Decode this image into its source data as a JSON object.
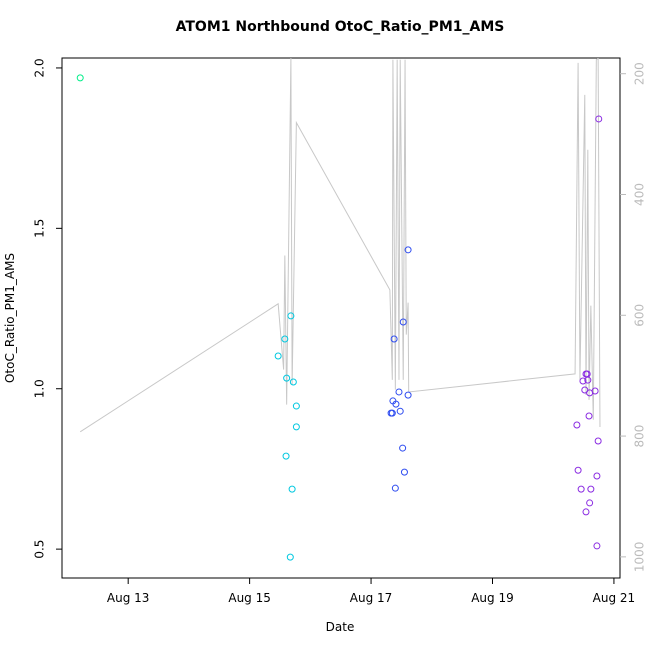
{
  "chart_data": {
    "type": "scatter",
    "title": "ATOM1 Northbound OtoC_Ratio_PM1_AMS",
    "x_label": "Date",
    "y_label": "OtoC_Ratio_PM1_AMS",
    "xlim": [
      11.91,
      21.1
    ],
    "xticks": [
      {
        "value": 13,
        "label": "Aug 13"
      },
      {
        "value": 15,
        "label": "Aug 15"
      },
      {
        "value": 17,
        "label": "Aug 17"
      },
      {
        "value": 19,
        "label": "Aug 19"
      },
      {
        "value": 21,
        "label": "Aug 21"
      }
    ],
    "ylim": [
      0.41,
      2.031
    ],
    "yticks": [
      0.5,
      {
        "value": 1.0,
        "label": "1.0"
      },
      1.5,
      {
        "value": 2.0,
        "label": "2.0"
      }
    ],
    "y2lim": [
      1035,
      174
    ],
    "y2ticks": [
      200,
      400,
      600,
      800,
      1000
    ],
    "y2_color": "#bbbbbb",
    "series": [
      {
        "color": "#00ee88",
        "x": [
          12.21
        ],
        "values": [
          1.969
        ]
      },
      {
        "color": "#00c8e0",
        "x": [
          15.47,
          15.58,
          15.61,
          15.6,
          15.67,
          15.68,
          15.7,
          15.72,
          15.77,
          15.77
        ],
        "values": [
          1.102,
          1.155,
          1.033,
          0.79,
          0.475,
          1.227,
          0.687,
          1.021,
          0.946,
          0.881
        ]
      },
      {
        "color": "#2e4cf0",
        "x": [
          17.38,
          17.33,
          17.35,
          17.36,
          17.4,
          17.41,
          17.46,
          17.48,
          17.52,
          17.53,
          17.55,
          17.61,
          17.61
        ],
        "values": [
          1.155,
          0.924,
          0.924,
          0.962,
          0.69,
          0.952,
          0.99,
          0.93,
          0.815,
          1.208,
          0.74,
          1.433,
          0.98
        ]
      },
      {
        "color": "#8a2be2",
        "x": [
          20.39,
          20.41,
          20.46,
          20.49,
          20.52,
          20.54,
          20.56,
          20.54,
          20.57,
          20.59,
          20.6,
          20.62,
          20.6,
          20.69,
          20.72,
          20.74,
          20.72,
          20.75
        ],
        "values": [
          0.887,
          0.746,
          0.687,
          1.024,
          0.996,
          1.046,
          1.046,
          0.616,
          1.027,
          0.915,
          0.644,
          0.687,
          0.987,
          0.993,
          0.51,
          0.837,
          0.728,
          1.841
        ]
      },
      {
        "type": "line",
        "axis": "y2",
        "color": "#c8c8c8",
        "x": [
          12.21,
          15.47,
          15.56,
          15.58,
          15.61,
          15.68,
          15.7,
          15.77,
          17.31,
          17.35,
          17.36,
          17.4,
          17.43,
          17.46,
          17.48,
          17.53,
          17.56,
          17.58,
          17.61,
          17.62,
          20.36,
          20.41,
          20.44,
          20.52,
          20.54,
          20.57,
          20.59,
          20.62,
          20.66,
          20.71,
          20.74,
          20.77
        ],
        "values": [
          793,
          581,
          690,
          501,
          748,
          174,
          715,
          281,
          558,
          707,
          177,
          723,
          177,
          707,
          177,
          707,
          177,
          632,
          579,
          727,
          697,
          182,
          707,
          235,
          732,
          326,
          740,
          584,
          773,
          177,
          174,
          785
        ]
      }
    ]
  }
}
